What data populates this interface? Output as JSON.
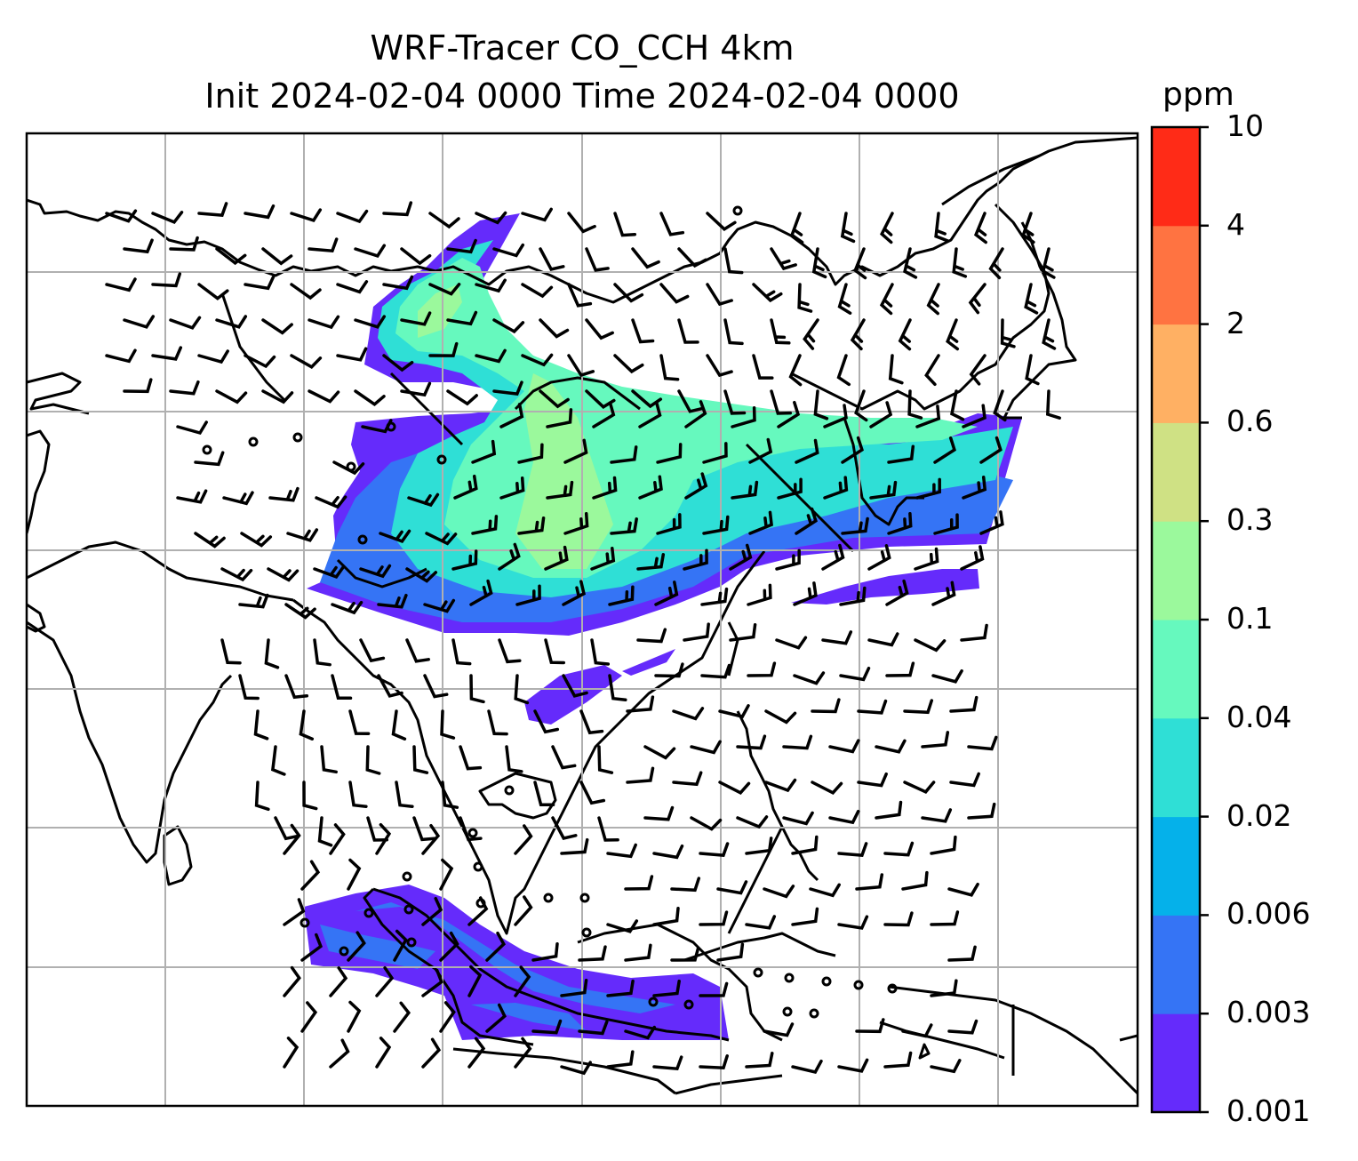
{
  "title": {
    "line1": "WRF-Tracer CO_CCH 4km",
    "line2": "Init 2024-02-04 0000 Time 2024-02-04 0000"
  },
  "colorbar": {
    "unit": "ppm",
    "levels": [
      "0.001",
      "0.003",
      "0.006",
      "0.02",
      "0.04",
      "0.1",
      "0.3",
      "0.6",
      "2",
      "4",
      "10"
    ],
    "colors": [
      "#652bfb",
      "#3574f5",
      "#05b1ea",
      "#2fdfd6",
      "#66f9be",
      "#9bf99c",
      "#cfe184",
      "#ffb063",
      "#ff7341",
      "#ff2b17"
    ]
  }
}
